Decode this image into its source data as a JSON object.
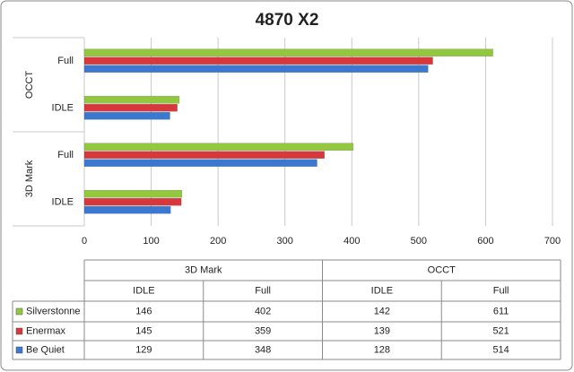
{
  "chart_data": {
    "type": "bar",
    "orientation": "horizontal",
    "title": "4870 X2",
    "groups": [
      {
        "name": "3D Mark",
        "categories": [
          "IDLE",
          "Full"
        ]
      },
      {
        "name": "OCCT",
        "categories": [
          "IDLE",
          "Full"
        ]
      }
    ],
    "series": [
      {
        "name": "Silverstonne",
        "color": "#92c83e",
        "values": [
          146,
          402,
          142,
          611
        ]
      },
      {
        "name": "Enermax",
        "color": "#d6383c",
        "values": [
          145,
          359,
          139,
          521
        ]
      },
      {
        "name": "Be Quiet",
        "color": "#3b78d0",
        "values": [
          129,
          348,
          128,
          514
        ]
      }
    ],
    "xlim": [
      0,
      700
    ],
    "xticks": [
      0,
      100,
      200,
      300,
      400,
      500,
      600,
      700
    ],
    "grid": true,
    "data_table": true
  }
}
